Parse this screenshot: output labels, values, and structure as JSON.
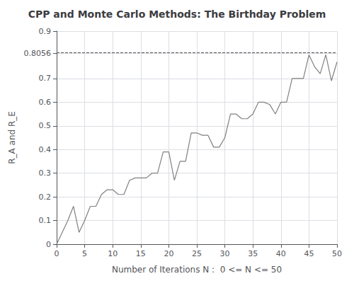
{
  "chart_data": {
    "type": "line",
    "title": "CPP and Monte Carlo Methods: The Birthday Problem",
    "x_label": "Number of Iterations N :  0 <= N <= 50",
    "y_label": "R_A and R_E",
    "x": [
      0,
      1,
      2,
      3,
      4,
      5,
      6,
      7,
      8,
      9,
      10,
      11,
      12,
      13,
      14,
      15,
      16,
      17,
      18,
      19,
      20,
      21,
      22,
      23,
      24,
      25,
      26,
      27,
      28,
      29,
      30,
      31,
      32,
      33,
      34,
      35,
      36,
      37,
      38,
      39,
      40,
      41,
      42,
      43,
      44,
      45,
      46,
      47,
      48,
      49,
      50
    ],
    "values": [
      0.0,
      0.05,
      0.1,
      0.16,
      0.05,
      0.1,
      0.16,
      0.16,
      0.21,
      0.23,
      0.23,
      0.21,
      0.21,
      0.27,
      0.28,
      0.28,
      0.28,
      0.3,
      0.3,
      0.39,
      0.39,
      0.27,
      0.35,
      0.35,
      0.47,
      0.47,
      0.46,
      0.46,
      0.41,
      0.41,
      0.45,
      0.55,
      0.55,
      0.53,
      0.53,
      0.55,
      0.6,
      0.6,
      0.59,
      0.55,
      0.6,
      0.6,
      0.7,
      0.7,
      0.7,
      0.8,
      0.75,
      0.72,
      0.8,
      0.69,
      0.77
    ],
    "color": "#808080",
    "xlim": [
      0,
      50
    ],
    "xticks": [
      0,
      5,
      10,
      15,
      20,
      25,
      30,
      35,
      40,
      45,
      50
    ],
    "ylim": [
      0,
      0.9
    ],
    "yticks": [
      0,
      0.1,
      0.2,
      0.3,
      0.4,
      0.5,
      0.6,
      0.7,
      0.8056,
      0.9
    ],
    "reference_lines": [
      {
        "y": 0.8056,
        "color": "#555555",
        "line_style": "dashed"
      }
    ],
    "grid": true
  }
}
